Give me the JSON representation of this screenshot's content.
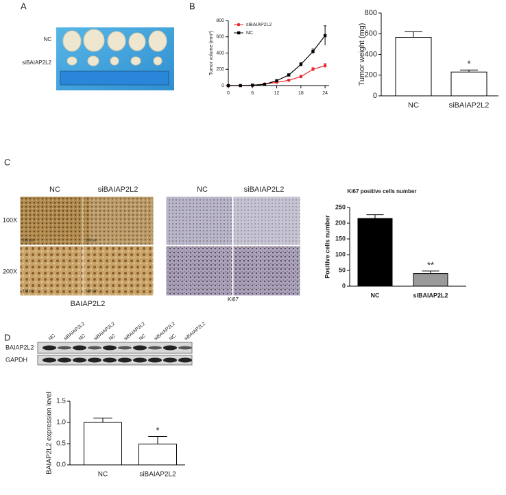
{
  "panel_labels": [
    "A",
    "B",
    "C",
    "D"
  ],
  "photo_a": {
    "rows": [
      "NC",
      "siBAIAP2L2"
    ]
  },
  "ihc": {
    "columns": [
      "NC",
      "siBAIAP2L2"
    ],
    "rows": [
      "100X",
      "200X"
    ],
    "markers": [
      "BAIAP2L2",
      "Ki67"
    ],
    "scale_bar": "100 μm"
  },
  "blot": {
    "lanes": [
      "NC",
      "siBAIAP2L2",
      "NC",
      "siBAIAP2L2",
      "NC",
      "siBAIAP2L2",
      "NC",
      "siBAIAP2L2",
      "NC",
      "siBAIAP2L2"
    ],
    "rows": [
      "BAIAP2L2",
      "GAPDH"
    ]
  },
  "chart_data": [
    {
      "type": "line",
      "ylabel": "Tumor volume (mm³)",
      "x": [
        0,
        3,
        6,
        9,
        12,
        15,
        18,
        21,
        24
      ],
      "series": [
        {
          "name": "siBAIAP2L2",
          "color": "#e8262a",
          "marker": "circle",
          "values": [
            0,
            0,
            2,
            20,
            40,
            65,
            110,
            200,
            245
          ],
          "errors": [
            0,
            0,
            2,
            5,
            8,
            10,
            15,
            20,
            25
          ]
        },
        {
          "name": "NC",
          "color": "#000000",
          "marker": "square",
          "values": [
            0,
            0,
            5,
            15,
            60,
            130,
            260,
            420,
            615
          ],
          "errors": [
            0,
            0,
            3,
            5,
            10,
            15,
            20,
            30,
            120
          ]
        }
      ],
      "xlim": [
        0,
        25
      ],
      "xticks": [
        0,
        6,
        12,
        18,
        24
      ],
      "ylim": [
        0,
        800
      ],
      "yticks": [
        0,
        200,
        400,
        600,
        800
      ]
    },
    {
      "type": "bar",
      "ylabel": "Tumor weight (mg)",
      "categories": [
        "NC",
        "siBAIAP2L2"
      ],
      "values": [
        565,
        230
      ],
      "errors": [
        55,
        20
      ],
      "color": "#ffffff",
      "significance": "*",
      "ylim": [
        0,
        800
      ],
      "yticks": [
        0,
        200,
        400,
        600,
        800
      ]
    },
    {
      "type": "bar",
      "title": "Ki67 positive cells number",
      "ylabel": "Positive cells number",
      "categories": [
        "NC",
        "siBAIAP2L2"
      ],
      "values": [
        215,
        40
      ],
      "errors": [
        12,
        8
      ],
      "colors": [
        "#000000",
        "#9a9a9a"
      ],
      "significance": "**",
      "ylim": [
        0,
        250
      ],
      "yticks": [
        0,
        50,
        100,
        150,
        200,
        250
      ]
    },
    {
      "type": "bar",
      "ylabel": "BAIAP2L2 expression level",
      "categories": [
        "NC",
        "siBAIAP2L2"
      ],
      "values": [
        1.0,
        0.49
      ],
      "errors": [
        0.1,
        0.18
      ],
      "color": "#ffffff",
      "significance": "*",
      "ylim": [
        0,
        1.5
      ],
      "yticks": [
        {
          "value": 0,
          "label": "0.0"
        },
        {
          "value": 0.5,
          "label": "0.5"
        },
        {
          "value": 1.0,
          "label": "1.0"
        },
        {
          "value": 1.5,
          "label": "1.5"
        }
      ]
    }
  ]
}
